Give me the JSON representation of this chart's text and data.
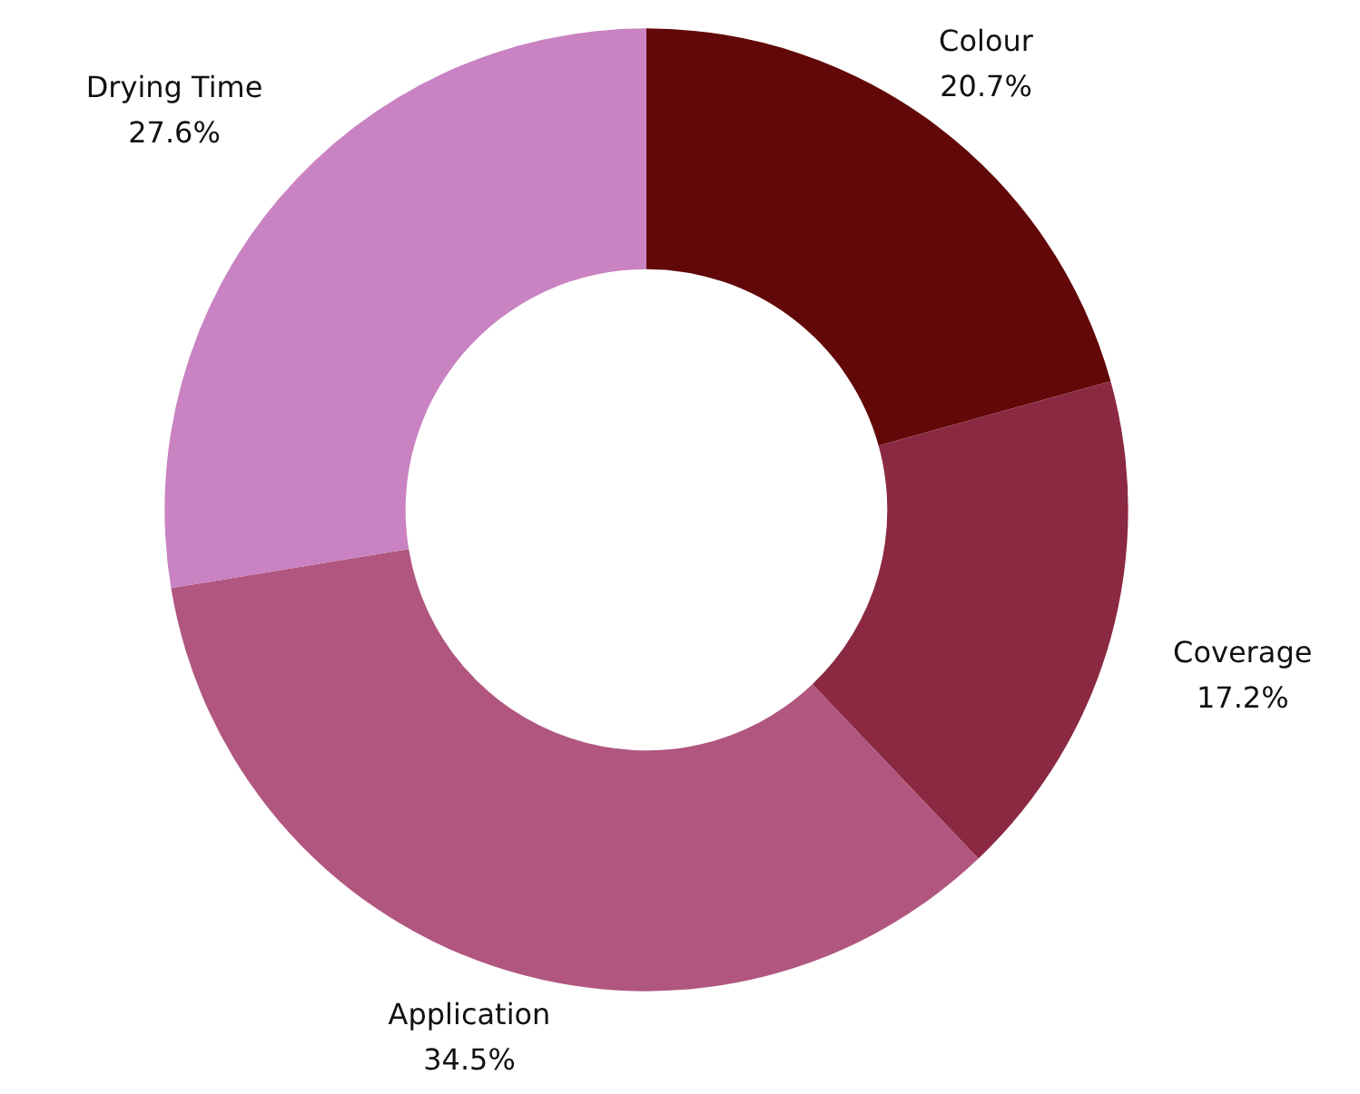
{
  "chart_data": {
    "type": "donut",
    "categories": [
      "Colour",
      "Coverage",
      "Application",
      "Drying Time"
    ],
    "values": [
      20.7,
      17.2,
      34.5,
      27.6
    ],
    "colors": [
      "#620808",
      "#8b2942",
      "#b0567f",
      "#c982c2"
    ],
    "value_labels": [
      "20.7%",
      "17.2%",
      "34.5%",
      "27.6%"
    ]
  }
}
